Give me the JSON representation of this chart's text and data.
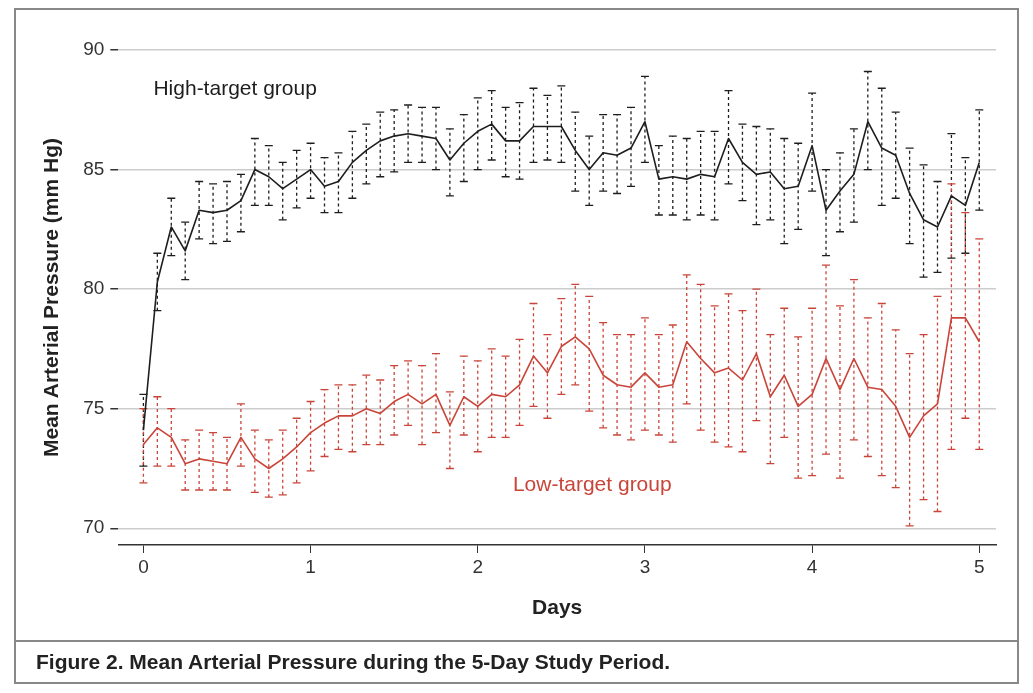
{
  "chart_data": {
    "type": "line",
    "title": "Figure 2. Mean Arterial Pressure during the 5-Day Study Period.",
    "xlabel": "Days",
    "ylabel": "Mean Arterial Pressure (mm Hg)",
    "x": [
      0,
      0.0833,
      0.1667,
      0.25,
      0.3333,
      0.4167,
      0.5,
      0.5833,
      0.6667,
      0.75,
      0.8333,
      0.9167,
      1,
      1.0833,
      1.1667,
      1.25,
      1.3333,
      1.4167,
      1.5,
      1.5833,
      1.6667,
      1.75,
      1.8333,
      1.9167,
      2,
      2.0833,
      2.1667,
      2.25,
      2.3333,
      2.4167,
      2.5,
      2.5833,
      2.6667,
      2.75,
      2.8333,
      2.9167,
      3,
      3.0833,
      3.1667,
      3.25,
      3.3333,
      3.4167,
      3.5,
      3.5833,
      3.6667,
      3.75,
      3.8333,
      3.9167,
      4,
      4.0833,
      4.1667,
      4.25,
      4.3333,
      4.4167,
      4.5,
      4.5833,
      4.6667,
      4.75,
      4.8333,
      4.9167,
      5
    ],
    "series": [
      {
        "name": "High-target group",
        "color": "#1e1e1e",
        "values": [
          74.1,
          80.3,
          82.6,
          81.6,
          83.3,
          83.2,
          83.3,
          83.7,
          85.0,
          84.7,
          84.2,
          84.6,
          85.0,
          84.3,
          84.5,
          85.3,
          85.8,
          86.2,
          86.4,
          86.5,
          86.4,
          86.3,
          85.4,
          86.1,
          86.6,
          86.9,
          86.2,
          86.2,
          86.8,
          86.8,
          86.8,
          85.8,
          85.0,
          85.7,
          85.6,
          85.9,
          87.0,
          84.6,
          84.7,
          84.6,
          84.8,
          84.7,
          86.3,
          85.3,
          84.8,
          84.9,
          84.2,
          84.3,
          86.0,
          83.3,
          84.1,
          84.8,
          87.0,
          85.9,
          85.6,
          84.0,
          82.9,
          82.6,
          83.9,
          83.5,
          85.3
        ],
        "errors": [
          [
            72.6,
            75.6
          ],
          [
            79.1,
            81.5
          ],
          [
            81.4,
            83.8
          ],
          [
            80.4,
            82.8
          ],
          [
            82.1,
            84.5
          ],
          [
            81.9,
            84.4
          ],
          [
            82.0,
            84.5
          ],
          [
            82.4,
            84.8
          ],
          [
            83.5,
            86.3
          ],
          [
            83.5,
            86.0
          ],
          [
            82.9,
            85.3
          ],
          [
            83.4,
            85.8
          ],
          [
            83.8,
            86.1
          ],
          [
            83.2,
            85.5
          ],
          [
            83.2,
            85.7
          ],
          [
            83.8,
            86.6
          ],
          [
            84.4,
            86.9
          ],
          [
            84.7,
            87.4
          ],
          [
            84.9,
            87.5
          ],
          [
            85.3,
            87.7
          ],
          [
            85.3,
            87.6
          ],
          [
            85.0,
            87.6
          ],
          [
            83.9,
            86.7
          ],
          [
            84.5,
            87.3
          ],
          [
            85.0,
            88.0
          ],
          [
            85.4,
            88.3
          ],
          [
            84.7,
            87.6
          ],
          [
            84.6,
            87.8
          ],
          [
            85.3,
            88.4
          ],
          [
            85.4,
            88.1
          ],
          [
            85.3,
            88.5
          ],
          [
            84.1,
            87.4
          ],
          [
            83.5,
            86.4
          ],
          [
            84.1,
            87.3
          ],
          [
            84.0,
            87.3
          ],
          [
            84.3,
            87.6
          ],
          [
            85.3,
            88.9
          ],
          [
            83.1,
            86.0
          ],
          [
            83.1,
            86.4
          ],
          [
            82.9,
            86.3
          ],
          [
            83.1,
            86.6
          ],
          [
            82.9,
            86.6
          ],
          [
            84.4,
            88.3
          ],
          [
            83.7,
            86.9
          ],
          [
            82.7,
            86.8
          ],
          [
            82.9,
            86.7
          ],
          [
            81.9,
            86.3
          ],
          [
            82.5,
            86.1
          ],
          [
            84.1,
            88.2
          ],
          [
            81.4,
            85.0
          ],
          [
            82.4,
            85.7
          ],
          [
            82.8,
            86.7
          ],
          [
            85.0,
            89.1
          ],
          [
            83.5,
            88.4
          ],
          [
            83.8,
            87.4
          ],
          [
            81.9,
            85.9
          ],
          [
            80.5,
            85.2
          ],
          [
            80.7,
            84.5
          ],
          [
            81.3,
            86.5
          ],
          [
            81.5,
            85.5
          ],
          [
            83.3,
            87.5
          ]
        ]
      },
      {
        "name": "Low-target group",
        "color": "#c9453a",
        "values": [
          73.5,
          74.2,
          73.8,
          72.7,
          72.9,
          72.8,
          72.7,
          73.8,
          72.9,
          72.5,
          72.9,
          73.4,
          74.0,
          74.4,
          74.7,
          74.7,
          75.0,
          74.8,
          75.3,
          75.6,
          75.2,
          75.6,
          74.3,
          75.5,
          75.1,
          75.6,
          75.5,
          76.0,
          77.2,
          76.5,
          77.6,
          78.0,
          77.5,
          76.4,
          76.0,
          75.9,
          76.5,
          75.9,
          76.0,
          77.8,
          77.1,
          76.5,
          76.7,
          76.2,
          77.3,
          75.5,
          76.4,
          75.1,
          75.6,
          77.1,
          75.8,
          77.1,
          75.9,
          75.8,
          75.1,
          73.8,
          74.7,
          75.2,
          78.8,
          78.8,
          77.8
        ],
        "errors": [
          [
            71.9,
            75.0
          ],
          [
            72.6,
            75.5
          ],
          [
            72.6,
            75.0
          ],
          [
            71.6,
            73.7
          ],
          [
            71.6,
            74.1
          ],
          [
            71.6,
            74.0
          ],
          [
            71.6,
            73.8
          ],
          [
            72.6,
            75.2
          ],
          [
            71.5,
            74.1
          ],
          [
            71.3,
            73.7
          ],
          [
            71.4,
            74.1
          ],
          [
            71.9,
            74.6
          ],
          [
            72.4,
            75.3
          ],
          [
            73.0,
            75.8
          ],
          [
            73.3,
            76.0
          ],
          [
            73.2,
            76.0
          ],
          [
            73.5,
            76.4
          ],
          [
            73.5,
            76.2
          ],
          [
            73.9,
            76.8
          ],
          [
            74.3,
            77.0
          ],
          [
            73.5,
            76.8
          ],
          [
            74.0,
            77.3
          ],
          [
            72.5,
            75.7
          ],
          [
            73.9,
            77.2
          ],
          [
            73.2,
            77.0
          ],
          [
            73.8,
            77.5
          ],
          [
            73.8,
            77.2
          ],
          [
            74.3,
            77.9
          ],
          [
            75.1,
            79.4
          ],
          [
            74.6,
            78.1
          ],
          [
            75.6,
            79.6
          ],
          [
            76.0,
            80.2
          ],
          [
            74.9,
            79.7
          ],
          [
            74.2,
            78.6
          ],
          [
            73.9,
            78.1
          ],
          [
            73.7,
            78.1
          ],
          [
            74.1,
            78.8
          ],
          [
            73.9,
            78.1
          ],
          [
            73.6,
            78.5
          ],
          [
            75.2,
            80.6
          ],
          [
            74.1,
            80.2
          ],
          [
            73.6,
            79.3
          ],
          [
            73.4,
            79.8
          ],
          [
            73.2,
            79.1
          ],
          [
            74.5,
            80.0
          ],
          [
            72.7,
            78.1
          ],
          [
            73.8,
            79.2
          ],
          [
            72.1,
            78.0
          ],
          [
            72.2,
            79.2
          ],
          [
            73.1,
            81.0
          ],
          [
            72.1,
            79.3
          ],
          [
            73.7,
            80.4
          ],
          [
            73.0,
            78.8
          ],
          [
            72.2,
            79.4
          ],
          [
            71.7,
            78.3
          ],
          [
            70.1,
            77.3
          ],
          [
            71.2,
            78.1
          ],
          [
            70.7,
            79.7
          ],
          [
            73.3,
            84.4
          ],
          [
            74.6,
            83.2
          ],
          [
            73.3,
            82.1
          ]
        ]
      }
    ],
    "xlim": [
      -0.15,
      5.1
    ],
    "xticks": [
      0,
      1,
      2,
      3,
      4,
      5
    ],
    "ylim": [
      69.3,
      90
    ],
    "yticks": [
      70,
      75,
      80,
      85,
      90
    ],
    "grid": "y",
    "legend": false,
    "marker": "none",
    "line_style": "solid"
  }
}
